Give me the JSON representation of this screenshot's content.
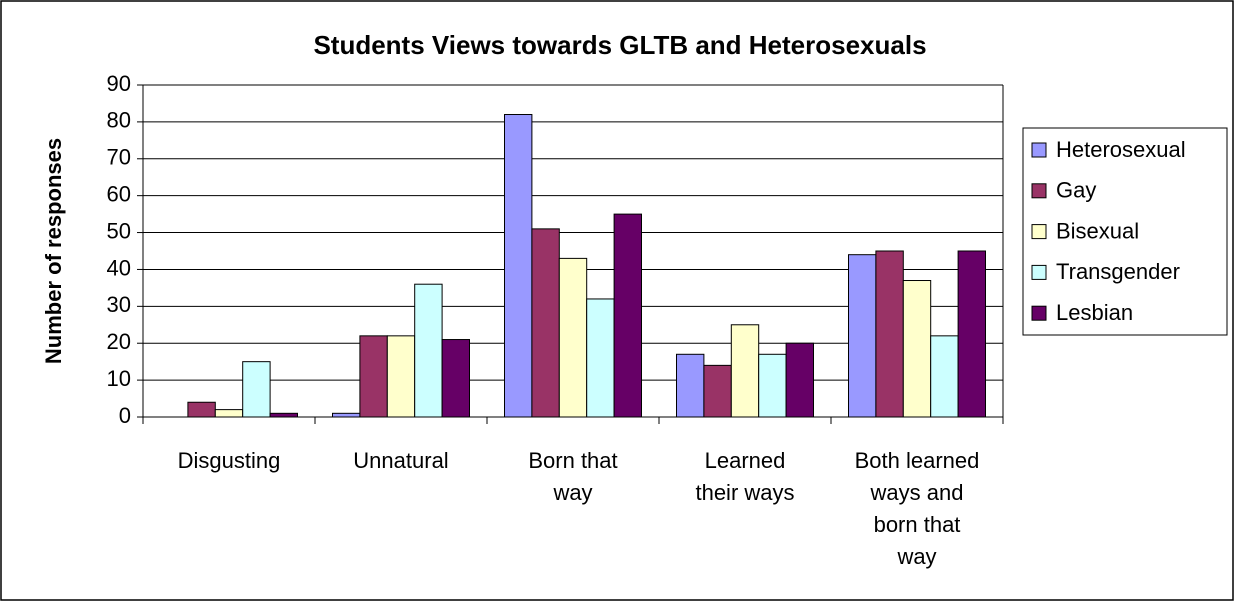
{
  "chart_data": {
    "type": "bar",
    "title": "Students Views towards GLTB and Heterosexuals",
    "y_label": "Number of responses",
    "categories": [
      "Disgusting",
      "Unnatural",
      "Born that\nway",
      "Learned\ntheir ways",
      "Both learned\nways and\nborn that\nway"
    ],
    "series": [
      {
        "name": "Heterosexual",
        "color": "#9999ff",
        "values": [
          0,
          1,
          82,
          17,
          44
        ]
      },
      {
        "name": "Gay",
        "color": "#993366",
        "values": [
          4,
          22,
          51,
          14,
          45
        ]
      },
      {
        "name": "Bisexual",
        "color": "#ffffcc",
        "values": [
          2,
          22,
          43,
          25,
          37
        ]
      },
      {
        "name": "Transgender",
        "color": "#ccffff",
        "values": [
          15,
          36,
          32,
          17,
          22
        ]
      },
      {
        "name": "Lesbian",
        "color": "#660066",
        "values": [
          1,
          21,
          55,
          20,
          45
        ]
      }
    ],
    "ylim": [
      0,
      90
    ],
    "yticks": [
      0,
      10,
      20,
      30,
      40,
      50,
      60,
      70,
      80,
      90
    ],
    "grid": true,
    "legend": "right"
  }
}
